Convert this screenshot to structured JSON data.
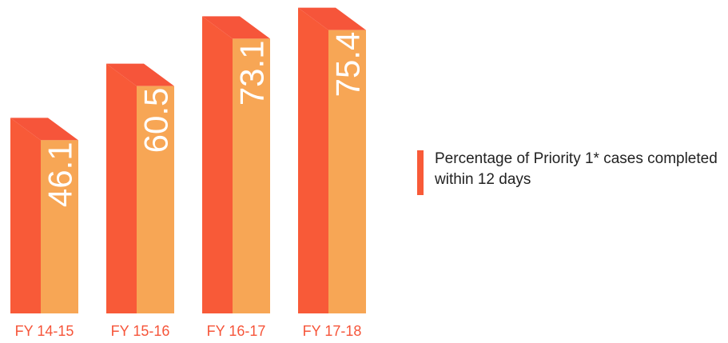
{
  "chart_data": {
    "type": "bar",
    "categories": [
      "FY 14-15",
      "FY 15-16",
      "FY 16-17",
      "FY 17-18"
    ],
    "series": [
      {
        "name": "Percentage of Priority 1* cases completed within 12 days",
        "values": [
          46.1,
          60.5,
          73.1,
          75.4
        ]
      }
    ],
    "value_labels": [
      "46.1",
      "60.5",
      "73.1",
      "75.4"
    ],
    "ylim": [
      0,
      80
    ],
    "grid": false,
    "legend_position": "right",
    "colors": {
      "front": "#F7A655",
      "side": "#F85A38",
      "top": "#F6553A",
      "label": "#F6553A",
      "legend": "#F85A38"
    }
  }
}
